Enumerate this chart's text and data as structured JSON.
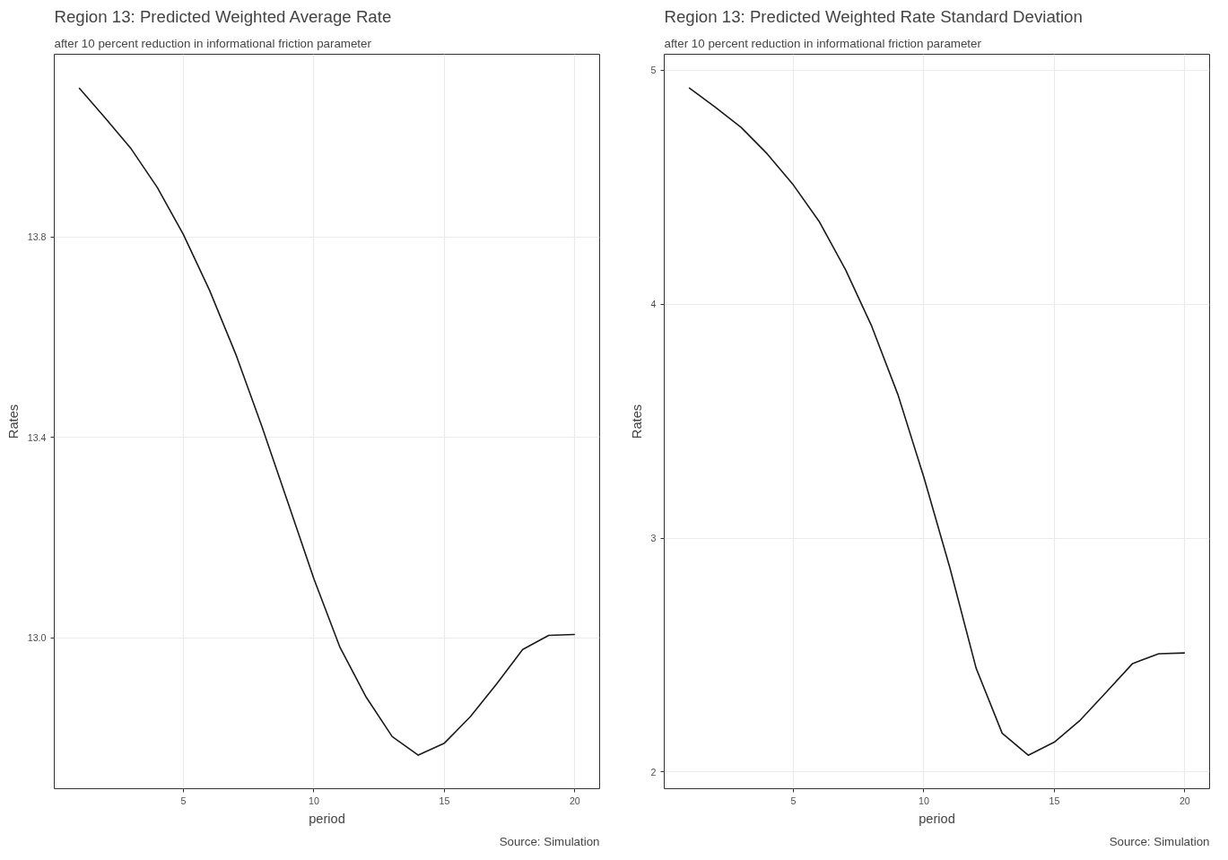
{
  "chart_data": [
    {
      "type": "line",
      "title": "Region 13: Predicted Weighted Average Rate",
      "subtitle": "after 10 percent reduction in informational friction parameter",
      "xlabel": "period",
      "ylabel": "Rates",
      "annotations": [
        "Source: Simulation"
      ],
      "x": [
        1,
        2,
        3,
        4,
        5,
        6,
        7,
        8,
        9,
        10,
        11,
        12,
        13,
        14,
        15,
        16,
        17,
        18,
        19,
        20
      ],
      "series": [
        {
          "color": "#1a1a1a",
          "values": [
            14.098,
            14.038,
            13.976,
            13.899,
            13.805,
            13.694,
            13.567,
            13.423,
            13.271,
            13.118,
            12.981,
            12.882,
            12.803,
            12.766,
            12.79,
            12.843,
            12.908,
            12.977,
            13.005,
            13.007
          ]
        }
      ],
      "xlim": [
        0.05,
        20.95
      ],
      "ylim": [
        12.699,
        14.165
      ],
      "xticks": [
        5,
        10,
        15,
        20
      ],
      "yticks": [
        {
          "value": 13,
          "label": "13.0"
        },
        {
          "value": 13.4,
          "label": "13.4"
        },
        {
          "value": 13.8,
          "label": "13.8"
        }
      ],
      "grid": true
    },
    {
      "type": "line",
      "title": "Region 13: Predicted Weighted Rate Standard Deviation",
      "subtitle": "after 10 percent reduction in informational friction parameter",
      "xlabel": "period",
      "ylabel": "Rates",
      "annotations": [
        "Source: Simulation"
      ],
      "x": [
        1,
        2,
        3,
        4,
        5,
        6,
        7,
        8,
        9,
        10,
        11,
        12,
        13,
        14,
        15,
        16,
        17,
        18,
        19,
        20
      ],
      "series": [
        {
          "color": "#1a1a1a",
          "values": [
            4.925,
            4.842,
            4.755,
            4.642,
            4.509,
            4.351,
            4.147,
            3.906,
            3.615,
            3.26,
            2.872,
            2.445,
            2.166,
            2.072,
            2.128,
            2.223,
            2.343,
            2.464,
            2.506,
            2.509
          ]
        }
      ],
      "xlim": [
        0.05,
        20.95
      ],
      "ylim": [
        1.929,
        5.068
      ],
      "xticks": [
        5,
        10,
        15,
        20
      ],
      "yticks": [
        2,
        3,
        4,
        5
      ],
      "grid": true
    }
  ]
}
